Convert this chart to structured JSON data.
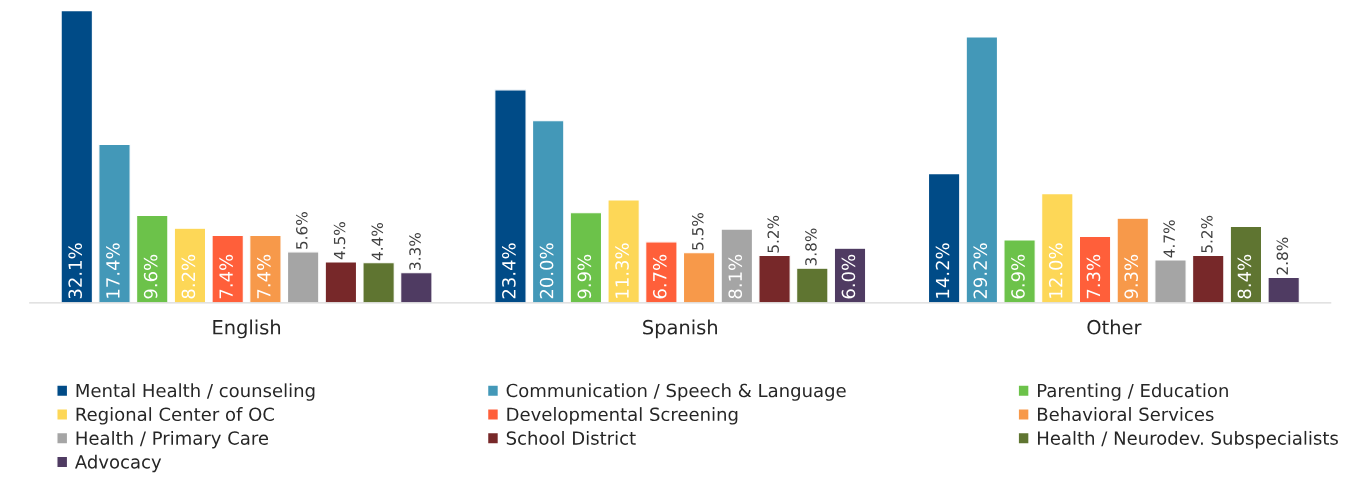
{
  "chart_data": {
    "type": "bar",
    "categories": [
      "English",
      "Spanish",
      "Other"
    ],
    "series": [
      {
        "name": "Mental Health / counseling",
        "color": "#004b87",
        "values": [
          32.1,
          23.4,
          14.2
        ],
        "value_labels": [
          "32.1%",
          "23.4%",
          "14.2%"
        ]
      },
      {
        "name": "Communication / Speech & Language",
        "color": "#4398b8",
        "values": [
          17.4,
          20.0,
          29.2
        ],
        "value_labels": [
          "17.4%",
          "20.0%",
          "29.2%"
        ]
      },
      {
        "name": "Parenting / Education",
        "color": "#6cc24a",
        "values": [
          9.6,
          9.9,
          6.9
        ],
        "value_labels": [
          "9.6%",
          "9.9%",
          "6.9%"
        ]
      },
      {
        "name": "Regional Center of OC",
        "color": "#fdd757",
        "values": [
          8.2,
          11.3,
          12.0
        ],
        "value_labels": [
          "8.2%",
          "11.3%",
          "12.0%"
        ]
      },
      {
        "name": "Developmental Screening",
        "color": "#ff5f3a",
        "values": [
          7.4,
          6.7,
          7.3
        ],
        "value_labels": [
          "7.4%",
          "6.7%",
          "7.3%"
        ]
      },
      {
        "name": "Behavioral Services",
        "color": "#f7994a",
        "values": [
          7.4,
          5.5,
          9.3
        ],
        "value_labels": [
          "7.4%",
          "5.5%",
          "9.3%"
        ]
      },
      {
        "name": "Health / Primary Care",
        "color": "#a5a5a5",
        "values": [
          5.6,
          8.1,
          4.7
        ],
        "value_labels": [
          "5.6%",
          "8.1%",
          "4.7%"
        ]
      },
      {
        "name": "School District",
        "color": "#772829",
        "values": [
          4.5,
          5.2,
          5.2
        ],
        "value_labels": [
          "4.5%",
          "5.2%",
          "5.2%"
        ]
      },
      {
        "name": "Health / Neurodev. Subspecialists",
        "color": "#5f7531",
        "values": [
          4.4,
          3.8,
          8.4
        ],
        "value_labels": [
          "4.4%",
          "3.8%",
          "8.4%"
        ]
      },
      {
        "name": "Advocacy",
        "color": "#4f3b62",
        "values": [
          3.3,
          6.0,
          2.8
        ],
        "value_labels": [
          "3.3%",
          "6.0%",
          "2.8%"
        ]
      }
    ],
    "legend": "bottom",
    "tick_labels": "x"
  }
}
